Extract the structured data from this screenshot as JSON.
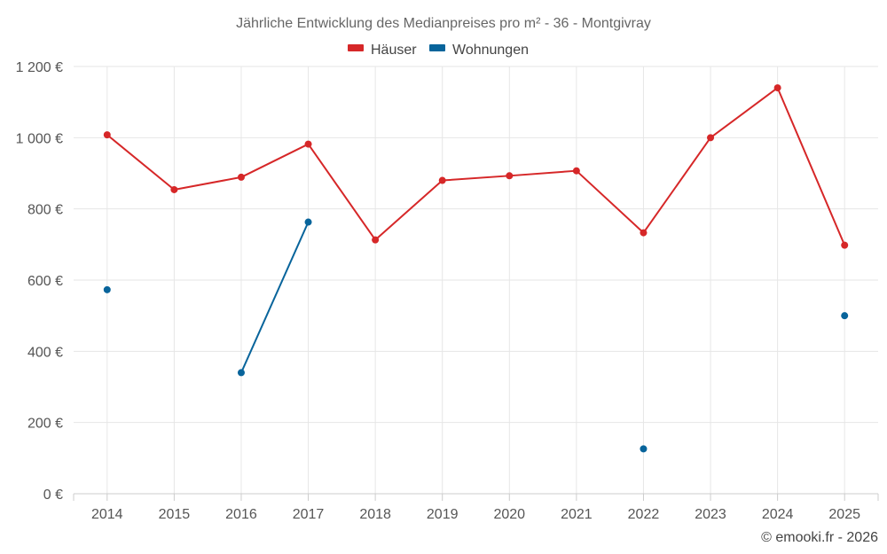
{
  "chart_data": {
    "type": "line",
    "title": "Jährliche Entwicklung des Medianpreises pro m² - 36 - Montgivray",
    "categories": [
      "2014",
      "2015",
      "2016",
      "2017",
      "2018",
      "2019",
      "2020",
      "2021",
      "2022",
      "2023",
      "2024",
      "2025"
    ],
    "series": [
      {
        "name": "Häuser",
        "color": "#d62728",
        "values": [
          1008,
          854,
          889,
          982,
          713,
          880,
          893,
          907,
          733,
          1000,
          1140,
          698
        ]
      },
      {
        "name": "Wohnungen",
        "color": "#08649b",
        "values": [
          573,
          null,
          340,
          763,
          null,
          null,
          null,
          null,
          126,
          null,
          null,
          500
        ]
      }
    ],
    "ylim": [
      0,
      1200
    ],
    "yticks": [
      0,
      200,
      400,
      600,
      800,
      1000,
      1200
    ],
    "ytick_labels": [
      "0 €",
      "200 €",
      "400 €",
      "600 €",
      "800 €",
      "1 000 €",
      "1 200 €"
    ],
    "xlabel": "",
    "ylabel": "",
    "legend_position": "top-center",
    "grid": true
  },
  "credit": "© emooki.fr - 2026"
}
